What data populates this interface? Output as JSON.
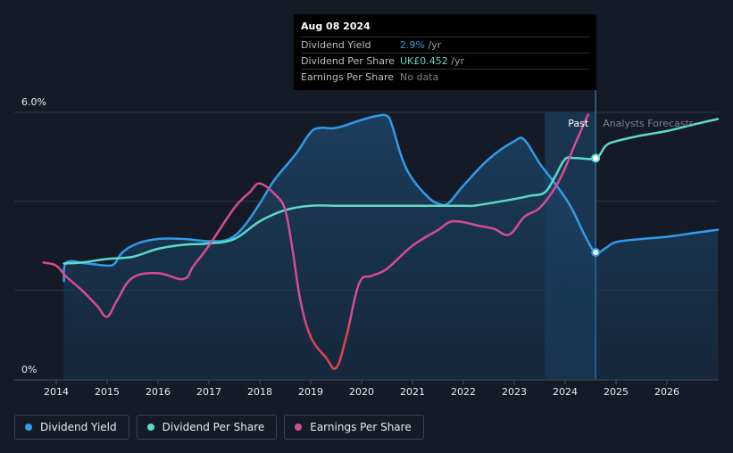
{
  "chart_data": {
    "type": "line",
    "y_axis_labels": [
      "6.0%",
      "0%"
    ],
    "ylim": [
      0,
      6
    ],
    "x_ticks": [
      "2014",
      "2015",
      "2016",
      "2017",
      "2018",
      "2019",
      "2020",
      "2021",
      "2022",
      "2023",
      "2024",
      "2025",
      "2026"
    ],
    "regions": {
      "past": "Past",
      "forecast": "Analysts Forecasts"
    },
    "series": [
      {
        "name": "Dividend Yield",
        "color": "#2f9bea",
        "points": [
          [
            2014.15,
            2.2
          ],
          [
            2014.2,
            2.62
          ],
          [
            2014.6,
            2.6
          ],
          [
            2015.0,
            2.55
          ],
          [
            2015.15,
            2.6
          ],
          [
            2015.3,
            2.85
          ],
          [
            2015.6,
            3.05
          ],
          [
            2016.0,
            3.15
          ],
          [
            2016.5,
            3.15
          ],
          [
            2017.0,
            3.1
          ],
          [
            2017.4,
            3.15
          ],
          [
            2017.7,
            3.45
          ],
          [
            2018.0,
            3.95
          ],
          [
            2018.3,
            4.5
          ],
          [
            2018.7,
            5.05
          ],
          [
            2019.0,
            5.55
          ],
          [
            2019.2,
            5.65
          ],
          [
            2019.5,
            5.65
          ],
          [
            2020.0,
            5.83
          ],
          [
            2020.3,
            5.92
          ],
          [
            2020.5,
            5.92
          ],
          [
            2020.6,
            5.7
          ],
          [
            2020.8,
            4.95
          ],
          [
            2021.0,
            4.5
          ],
          [
            2021.3,
            4.1
          ],
          [
            2021.5,
            3.95
          ],
          [
            2021.7,
            3.95
          ],
          [
            2022.0,
            4.35
          ],
          [
            2022.5,
            4.95
          ],
          [
            2023.0,
            5.35
          ],
          [
            2023.2,
            5.38
          ],
          [
            2023.5,
            4.85
          ],
          [
            2023.8,
            4.4
          ],
          [
            2024.1,
            3.9
          ],
          [
            2024.4,
            3.2
          ],
          [
            2024.6,
            2.85
          ],
          [
            2024.8,
            2.95
          ],
          [
            2025.0,
            3.08
          ],
          [
            2025.5,
            3.15
          ],
          [
            2026.0,
            3.2
          ],
          [
            2026.5,
            3.28
          ],
          [
            2027.0,
            3.36
          ]
        ]
      },
      {
        "name": "Dividend Per Share",
        "color": "#5dd9c9",
        "points": [
          [
            2014.15,
            2.6
          ],
          [
            2014.5,
            2.62
          ],
          [
            2015.0,
            2.7
          ],
          [
            2015.5,
            2.75
          ],
          [
            2016.0,
            2.93
          ],
          [
            2016.5,
            3.02
          ],
          [
            2017.0,
            3.05
          ],
          [
            2017.5,
            3.15
          ],
          [
            2018.0,
            3.55
          ],
          [
            2018.5,
            3.8
          ],
          [
            2019.0,
            3.9
          ],
          [
            2019.5,
            3.9
          ],
          [
            2020.0,
            3.9
          ],
          [
            2021.0,
            3.9
          ],
          [
            2022.0,
            3.9
          ],
          [
            2022.2,
            3.9
          ],
          [
            2022.6,
            3.97
          ],
          [
            2023.0,
            4.05
          ],
          [
            2023.3,
            4.12
          ],
          [
            2023.6,
            4.2
          ],
          [
            2023.8,
            4.55
          ],
          [
            2024.0,
            4.95
          ],
          [
            2024.2,
            4.97
          ],
          [
            2024.6,
            4.97
          ],
          [
            2024.8,
            5.25
          ],
          [
            2025.0,
            5.35
          ],
          [
            2025.5,
            5.48
          ],
          [
            2026.0,
            5.58
          ],
          [
            2026.5,
            5.72
          ],
          [
            2027.0,
            5.85
          ]
        ]
      },
      {
        "name": "Earnings Per Share",
        "color": "#d54c93",
        "points": [
          [
            2013.75,
            2.62
          ],
          [
            2014.0,
            2.55
          ],
          [
            2014.2,
            2.3
          ],
          [
            2014.5,
            2.0
          ],
          [
            2014.8,
            1.65
          ],
          [
            2015.0,
            1.4
          ],
          [
            2015.2,
            1.78
          ],
          [
            2015.5,
            2.28
          ],
          [
            2016.0,
            2.38
          ],
          [
            2016.5,
            2.25
          ],
          [
            2016.7,
            2.55
          ],
          [
            2017.0,
            3.0
          ],
          [
            2017.5,
            3.85
          ],
          [
            2017.8,
            4.2
          ],
          [
            2018.0,
            4.4
          ],
          [
            2018.3,
            4.15
          ],
          [
            2018.5,
            3.8
          ],
          [
            2018.65,
            2.85
          ],
          [
            2018.8,
            1.75
          ],
          [
            2019.0,
            0.95
          ],
          [
            2019.3,
            0.48
          ],
          [
            2019.5,
            0.25
          ],
          [
            2019.7,
            0.95
          ],
          [
            2019.95,
            2.15
          ],
          [
            2020.2,
            2.32
          ],
          [
            2020.5,
            2.48
          ],
          [
            2021.0,
            3.0
          ],
          [
            2021.5,
            3.35
          ],
          [
            2021.8,
            3.55
          ],
          [
            2022.3,
            3.45
          ],
          [
            2022.6,
            3.38
          ],
          [
            2022.9,
            3.25
          ],
          [
            2023.2,
            3.65
          ],
          [
            2023.5,
            3.85
          ],
          [
            2023.8,
            4.3
          ],
          [
            2024.0,
            4.75
          ],
          [
            2024.2,
            5.3
          ],
          [
            2024.45,
            5.95
          ]
        ]
      }
    ],
    "markers": [
      {
        "series": "Dividend Per Share",
        "x": 2024.6,
        "y": 4.97
      },
      {
        "series": "Dividend Yield",
        "x": 2024.6,
        "y": 2.85
      }
    ],
    "past_band_x": [
      2023.6,
      2024.6
    ]
  },
  "tooltip": {
    "date": "Aug 08 2024",
    "rows": [
      {
        "label": "Dividend Yield",
        "value": "2.9%",
        "unit": " /yr",
        "color": "#2f9bea"
      },
      {
        "label": "Dividend Per Share",
        "value": "UK£0.452",
        "unit": " /yr",
        "color": "#5dd9c9"
      },
      {
        "label": "Earnings Per Share",
        "value": "No data",
        "unit": "",
        "color": "#7d828a"
      }
    ]
  },
  "legend": [
    {
      "label": "Dividend Yield",
      "color": "#2f9bea"
    },
    {
      "label": "Dividend Per Share",
      "color": "#5dd9c9"
    },
    {
      "label": "Earnings Per Share",
      "color": "#d54c93"
    }
  ]
}
